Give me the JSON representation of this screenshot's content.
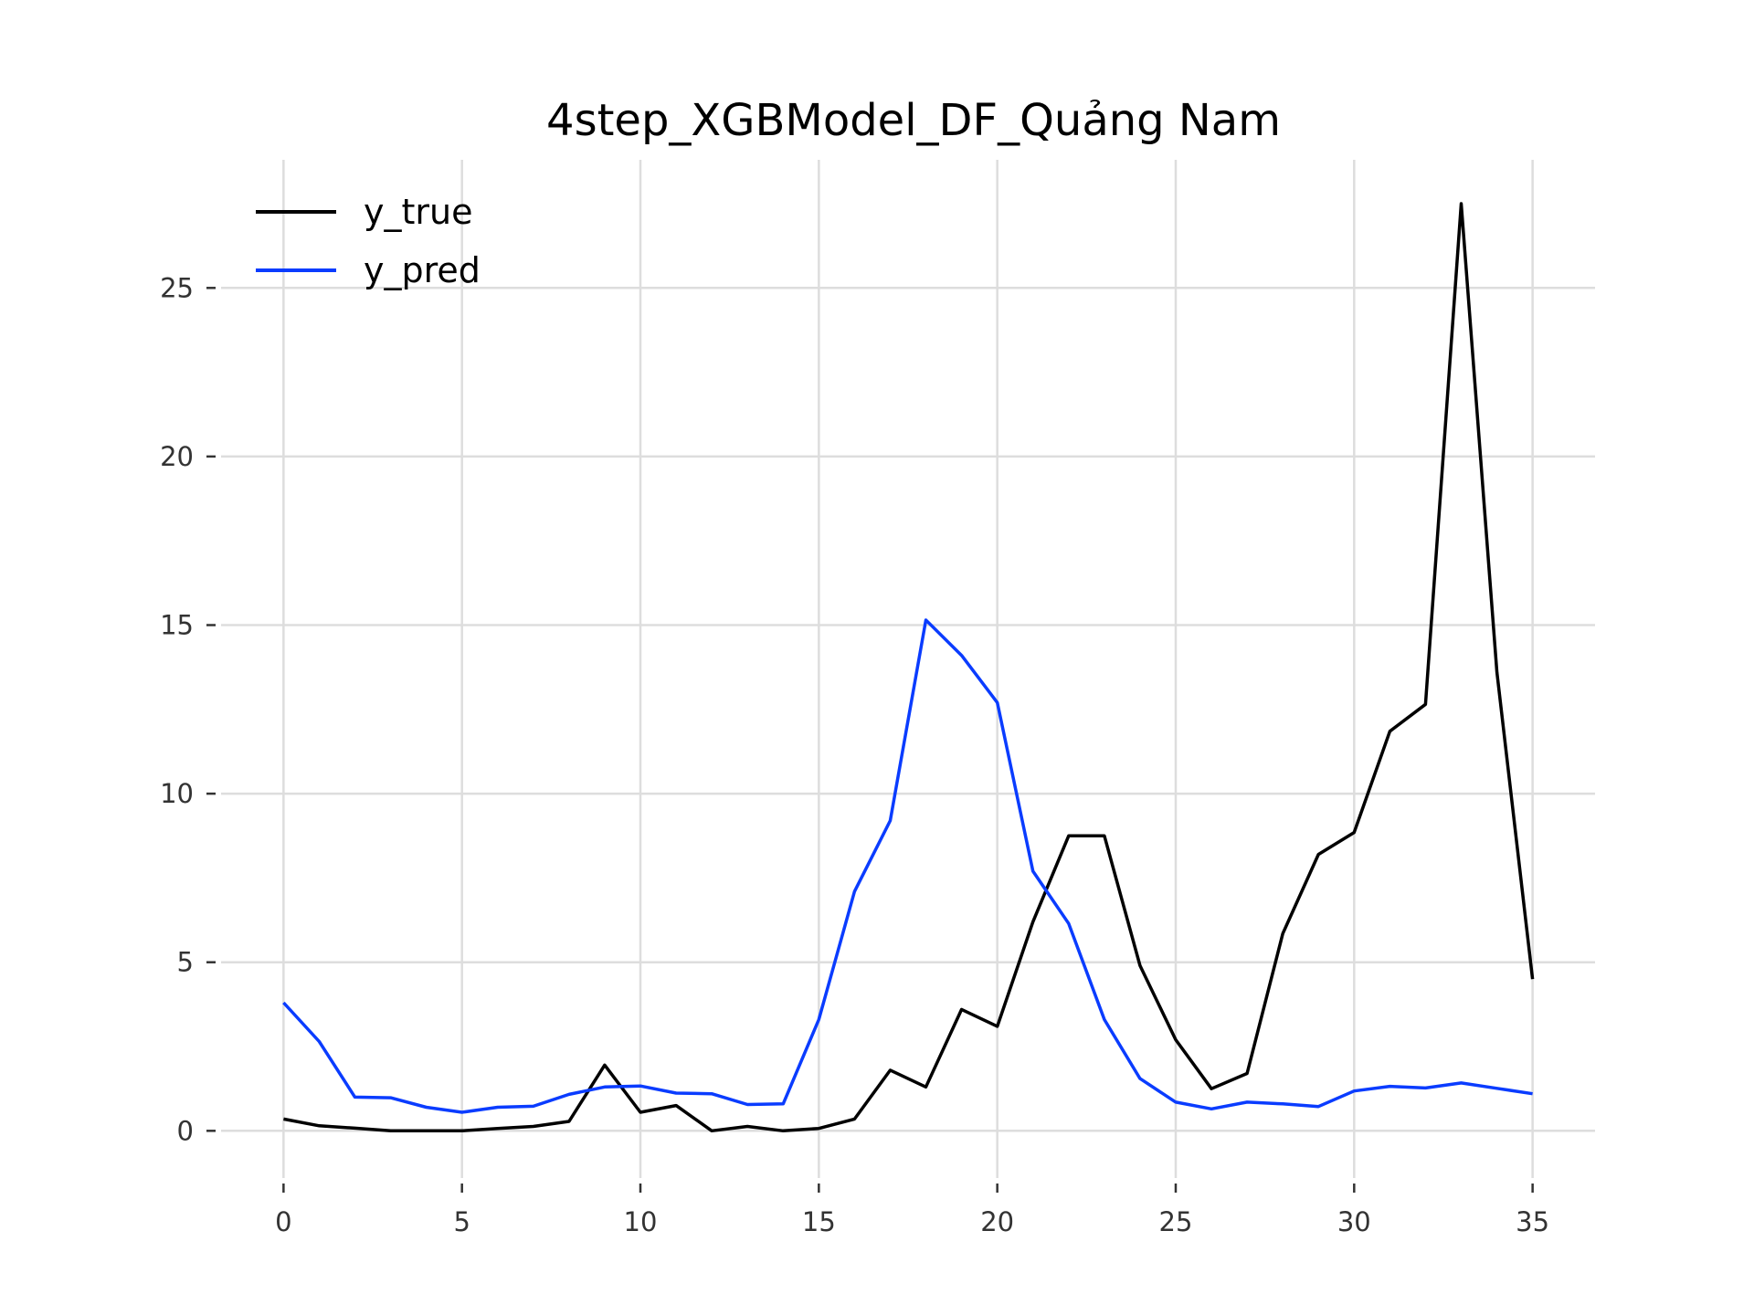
{
  "chart_data": {
    "type": "line",
    "title": "4step_XGBModel_DF_Quảng Nam",
    "xlabel": "",
    "ylabel": "",
    "xlim": [
      -1.75,
      36.75
    ],
    "ylim": [
      -1.4,
      28.8
    ],
    "xticks": [
      0,
      5,
      10,
      15,
      20,
      25,
      30,
      35
    ],
    "yticks": [
      0,
      5,
      10,
      15,
      20,
      25
    ],
    "grid": true,
    "legend_position": "top-left",
    "x": [
      0,
      1,
      2,
      3,
      4,
      5,
      6,
      7,
      8,
      9,
      10,
      11,
      12,
      13,
      14,
      15,
      16,
      17,
      18,
      19,
      20,
      21,
      22,
      23,
      24,
      25,
      26,
      27,
      28,
      29,
      30,
      31,
      32,
      33,
      34,
      35
    ],
    "series": [
      {
        "name": "y_true",
        "color": "#000000",
        "values": [
          0.35,
          0.15,
          0.08,
          0.0,
          0.0,
          0.0,
          0.07,
          0.13,
          0.28,
          1.95,
          0.55,
          0.75,
          0.0,
          0.13,
          0.0,
          0.07,
          0.35,
          1.8,
          1.3,
          3.6,
          3.1,
          6.2,
          8.75,
          8.75,
          4.9,
          2.7,
          1.25,
          1.7,
          5.85,
          8.2,
          8.85,
          11.85,
          12.65,
          27.5,
          13.6,
          4.5
        ]
      },
      {
        "name": "y_pred",
        "color": "#0a3cff",
        "values": [
          3.8,
          2.65,
          1.0,
          0.98,
          0.7,
          0.55,
          0.7,
          0.73,
          1.08,
          1.3,
          1.33,
          1.12,
          1.1,
          0.78,
          0.8,
          3.3,
          7.1,
          9.2,
          15.15,
          14.1,
          12.7,
          7.7,
          6.15,
          3.3,
          1.55,
          0.85,
          0.65,
          0.85,
          0.8,
          0.72,
          1.18,
          1.32,
          1.27,
          1.42,
          1.26,
          1.1
        ]
      }
    ]
  }
}
